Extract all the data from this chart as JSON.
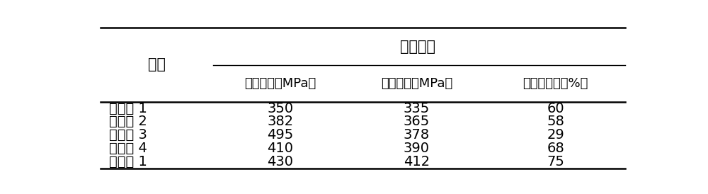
{
  "title_group": "力学性能",
  "state_header": "状态",
  "col_headers": [
    "抗拉强度（MPa）",
    "屈服强度（MPa）",
    "断后伸长率（%）"
  ],
  "rows": [
    [
      "对比例 1",
      "350",
      "335",
      "60"
    ],
    [
      "对比例 2",
      "382",
      "365",
      "58"
    ],
    [
      "对比例 3",
      "495",
      "378",
      "29"
    ],
    [
      "对比例 4",
      "410",
      "390",
      "68"
    ],
    [
      "实施例 1",
      "430",
      "412",
      "75"
    ]
  ],
  "background_color": "#ffffff",
  "text_color": "#000000",
  "font_size": 14,
  "header_font_size": 14
}
